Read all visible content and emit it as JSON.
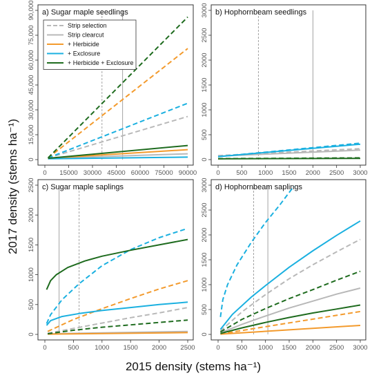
{
  "figure": {
    "xlabel": "2015 density (stems ha⁻¹)",
    "ylabel": "2017 density (stems ha⁻¹)"
  },
  "legend": [
    {
      "label": "Strip selection",
      "color": "#b8b8b8",
      "dash": true
    },
    {
      "label": "Strip clearcut",
      "color": "#b8b8b8",
      "dash": false
    },
    {
      "label": "+ Herbicide",
      "color": "#f39a2c",
      "dash": false
    },
    {
      "label": "+ Exclosure",
      "color": "#1ab0e0",
      "dash": false
    },
    {
      "label": "+ Herbicide + Exclosure",
      "color": "#1e6b1e",
      "dash": false
    }
  ],
  "chart_data": [
    {
      "type": "line",
      "title": "a) Sugar maple seedlings",
      "xlim": [
        0,
        90000
      ],
      "ylim": [
        0,
        90000
      ],
      "xticks": [
        0,
        15000,
        30000,
        45000,
        60000,
        75000,
        90000
      ],
      "xtick_labels": [
        "0",
        "15000",
        "30000",
        "45000",
        "60000",
        "75000",
        "90000"
      ],
      "yticks": [
        0,
        15000,
        30000,
        45000,
        60000,
        75000,
        90000
      ],
      "ytick_labels": [
        "0",
        "15,000",
        "30,000",
        "45,000",
        "60,000",
        "75,000",
        "90,000"
      ],
      "vlines": [
        {
          "x": 36000,
          "dash": true
        },
        {
          "x": 49000,
          "dash": false
        }
      ],
      "series": [
        {
          "name": "Strip selection",
          "dash": true,
          "color": "#b8b8b8",
          "x": [
            2000,
            90000
          ],
          "y": [
            1000,
            26000
          ]
        },
        {
          "name": "Strip clearcut",
          "dash": false,
          "color": "#b8b8b8",
          "x": [
            2000,
            90000
          ],
          "y": [
            800,
            3500
          ]
        },
        {
          "name": "Strip selection + Herbicide",
          "dash": true,
          "color": "#f39a2c",
          "x": [
            2000,
            90000
          ],
          "y": [
            1000,
            67000
          ]
        },
        {
          "name": "Strip clearcut + Herbicide",
          "dash": false,
          "color": "#f39a2c",
          "x": [
            2000,
            90000
          ],
          "y": [
            800,
            6000
          ]
        },
        {
          "name": "Strip selection + Exclosure",
          "dash": true,
          "color": "#1ab0e0",
          "x": [
            2000,
            90000
          ],
          "y": [
            1000,
            34000
          ]
        },
        {
          "name": "Strip clearcut + Exclosure",
          "dash": false,
          "color": "#1ab0e0",
          "x": [
            2000,
            90000
          ],
          "y": [
            500,
            1500
          ]
        },
        {
          "name": "Strip selection + Herbicide + Exclosure",
          "dash": true,
          "color": "#1e6b1e",
          "x": [
            2000,
            90000
          ],
          "y": [
            1000,
            86000
          ]
        },
        {
          "name": "Strip clearcut + Herbicide + Exclosure",
          "dash": false,
          "color": "#1e6b1e",
          "x": [
            2000,
            90000
          ],
          "y": [
            800,
            8500
          ]
        }
      ]
    },
    {
      "type": "line",
      "title": "b) Hophornbeam seedlings",
      "xlim": [
        0,
        3000
      ],
      "ylim": [
        0,
        3000
      ],
      "xticks": [
        0,
        500,
        1000,
        1500,
        2000,
        2500,
        3000
      ],
      "xtick_labels": [
        "0",
        "500",
        "1000",
        "1500",
        "2000",
        "2500",
        "3000"
      ],
      "yticks": [
        0,
        500,
        1000,
        1500,
        2000,
        2500,
        3000
      ],
      "ytick_labels": [
        "0",
        "500",
        "1000",
        "1500",
        "2000",
        "2500",
        "3000"
      ],
      "vlines": [
        {
          "x": 850,
          "dash": true
        },
        {
          "x": 2000,
          "dash": false
        }
      ],
      "series": [
        {
          "name": "Strip selection",
          "dash": true,
          "color": "#b8b8b8",
          "x": [
            0,
            3000
          ],
          "y": [
            80,
            220
          ]
        },
        {
          "name": "Strip clearcut",
          "dash": false,
          "color": "#b8b8b8",
          "x": [
            0,
            3000
          ],
          "y": [
            70,
            190
          ]
        },
        {
          "name": "Strip selection + Exclosure",
          "dash": true,
          "color": "#1ab0e0",
          "x": [
            0,
            3000
          ],
          "y": [
            60,
            330
          ]
        },
        {
          "name": "Strip clearcut + Exclosure",
          "dash": false,
          "color": "#1ab0e0",
          "x": [
            0,
            3000
          ],
          "y": [
            60,
            310
          ]
        },
        {
          "name": "Strip selection + Herbicide + Exclosure",
          "dash": true,
          "color": "#1e6b1e",
          "x": [
            0,
            3000
          ],
          "y": [
            20,
            35
          ]
        },
        {
          "name": "Strip clearcut + Herbicide + Exclosure",
          "dash": false,
          "color": "#1e6b1e",
          "x": [
            0,
            3000
          ],
          "y": [
            15,
            25
          ]
        }
      ]
    },
    {
      "type": "line",
      "title": "c) Sugar maple saplings",
      "xlim": [
        0,
        2500
      ],
      "ylim": [
        0,
        2500
      ],
      "xticks": [
        0,
        500,
        1000,
        1500,
        2000,
        2500
      ],
      "xtick_labels": [
        "0",
        "500",
        "1000",
        "1500",
        "2000",
        "2500"
      ],
      "yticks": [
        0,
        500,
        1000,
        1500,
        2000,
        2500
      ],
      "ytick_labels": [
        "0",
        "500",
        "1000",
        "1500",
        "2000",
        "2500"
      ],
      "vlines": [
        {
          "x": 250,
          "dash": false
        },
        {
          "x": 600,
          "dash": true
        }
      ],
      "series": [
        {
          "name": "Strip selection",
          "dash": true,
          "color": "#b8b8b8",
          "x": [
            50,
            500,
            1000,
            1500,
            2000,
            2500
          ],
          "y": [
            20,
            100,
            190,
            280,
            360,
            450
          ]
        },
        {
          "name": "Strip clearcut",
          "dash": false,
          "color": "#b8b8b8",
          "x": [
            50,
            2500
          ],
          "y": [
            10,
            50
          ]
        },
        {
          "name": "Strip selection + Herbicide",
          "dash": true,
          "color": "#f39a2c",
          "x": [
            50,
            500,
            1000,
            1500,
            2000,
            2500
          ],
          "y": [
            50,
            250,
            430,
            600,
            760,
            900
          ]
        },
        {
          "name": "Strip clearcut + Herbicide",
          "dash": false,
          "color": "#f39a2c",
          "x": [
            50,
            2500
          ],
          "y": [
            5,
            30
          ]
        },
        {
          "name": "Strip selection + Exclosure",
          "dash": true,
          "color": "#1ab0e0",
          "x": [
            30,
            100,
            300,
            600,
            1000,
            1500,
            2000,
            2450
          ],
          "y": [
            180,
            330,
            580,
            850,
            1150,
            1420,
            1620,
            1760
          ]
        },
        {
          "name": "Strip clearcut + Exclosure",
          "dash": false,
          "color": "#1ab0e0",
          "x": [
            30,
            100,
            300,
            600,
            1000,
            1500,
            2000,
            2500
          ],
          "y": [
            150,
            230,
            300,
            350,
            400,
            450,
            500,
            540
          ]
        },
        {
          "name": "Strip selection + Herbicide + Exclosure",
          "dash": true,
          "color": "#1e6b1e",
          "x": [
            50,
            500,
            1000,
            1500,
            2000,
            2500
          ],
          "y": [
            10,
            70,
            120,
            160,
            200,
            240
          ]
        },
        {
          "name": "Strip clearcut + Herbicide + Exclosure",
          "dash": false,
          "color": "#1e6b1e",
          "x": [
            30,
            100,
            200,
            400,
            700,
            1000,
            1500,
            2000,
            2500
          ],
          "y": [
            750,
            900,
            1000,
            1120,
            1230,
            1310,
            1410,
            1500,
            1590
          ]
        }
      ]
    },
    {
      "type": "line",
      "title": "d) Hophornbeam saplings",
      "xlim": [
        0,
        3000
      ],
      "ylim": [
        0,
        3000
      ],
      "xticks": [
        0,
        500,
        1000,
        1500,
        2000,
        2500,
        3000
      ],
      "xtick_labels": [
        "0",
        "500",
        "1000",
        "1500",
        "2000",
        "2500",
        "3000"
      ],
      "yticks": [
        0,
        500,
        1000,
        1500,
        2000,
        2500,
        3000
      ],
      "ytick_labels": [
        "0",
        "500",
        "1000",
        "1500",
        "2000",
        "2500",
        "3000"
      ],
      "vlines": [
        {
          "x": 750,
          "dash": true
        },
        {
          "x": 1050,
          "dash": false
        }
      ],
      "series": [
        {
          "name": "Strip selection",
          "dash": true,
          "color": "#b8b8b8",
          "x": [
            50,
            500,
            1000,
            1500,
            2000,
            2500,
            3000
          ],
          "y": [
            70,
            450,
            800,
            1120,
            1400,
            1660,
            1910
          ]
        },
        {
          "name": "Strip clearcut",
          "dash": false,
          "color": "#b8b8b8",
          "x": [
            50,
            500,
            1000,
            1500,
            2000,
            2500,
            3000
          ],
          "y": [
            30,
            200,
            370,
            530,
            670,
            810,
            930
          ]
        },
        {
          "name": "Strip selection + Herbicide",
          "dash": true,
          "color": "#f39a2c",
          "x": [
            50,
            3000
          ],
          "y": [
            10,
            460
          ]
        },
        {
          "name": "Strip clearcut + Herbicide",
          "dash": false,
          "color": "#f39a2c",
          "x": [
            50,
            3000
          ],
          "y": [
            5,
            180
          ]
        },
        {
          "name": "Strip selection + Exclosure",
          "dash": true,
          "color": "#1ab0e0",
          "x": [
            50,
            100,
            200,
            400,
            700,
            1000,
            1300,
            1600
          ],
          "y": [
            350,
            700,
            1000,
            1400,
            1850,
            2250,
            2600,
            2980
          ]
        },
        {
          "name": "Strip clearcut + Exclosure",
          "dash": false,
          "color": "#1ab0e0",
          "x": [
            50,
            300,
            700,
            1000,
            1500,
            2000,
            2500,
            3000
          ],
          "y": [
            100,
            400,
            750,
            980,
            1350,
            1680,
            1990,
            2280
          ]
        },
        {
          "name": "Strip selection + Herbicide + Exclosure",
          "dash": true,
          "color": "#1e6b1e",
          "x": [
            50,
            500,
            1000,
            1500,
            2000,
            2500,
            3000
          ],
          "y": [
            50,
            300,
            520,
            720,
            900,
            1090,
            1270
          ]
        },
        {
          "name": "Strip clearcut + Herbicide + Exclosure",
          "dash": false,
          "color": "#1e6b1e",
          "x": [
            50,
            500,
            1000,
            1500,
            2000,
            2500,
            3000
          ],
          "y": [
            20,
            130,
            240,
            340,
            430,
            510,
            590
          ]
        }
      ]
    }
  ]
}
